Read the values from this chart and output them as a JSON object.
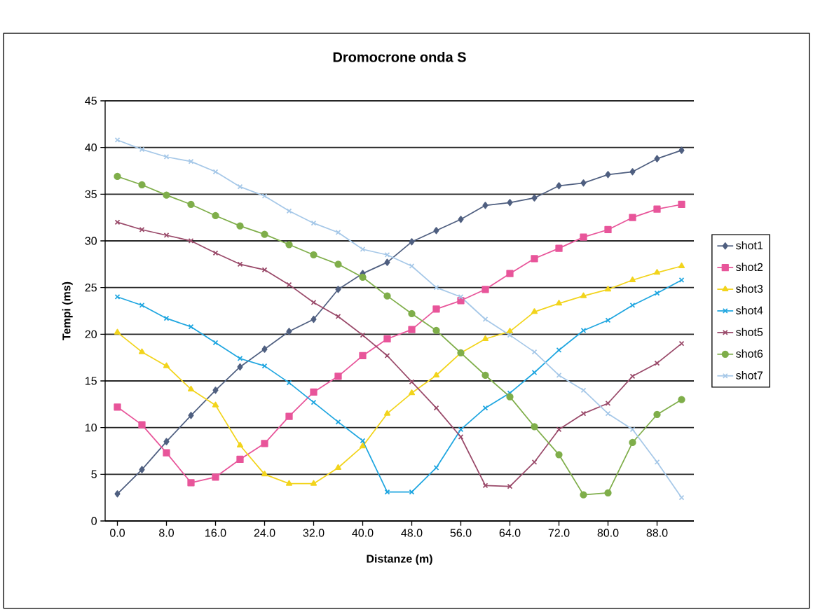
{
  "chart_data": {
    "type": "line",
    "title": "Dromocrone onda S",
    "xlabel": "Distanze (m)",
    "ylabel": "Tempi (ms)",
    "x": [
      0,
      4,
      8,
      12,
      16,
      20,
      24,
      28,
      32,
      36,
      40,
      44,
      48,
      52,
      56,
      60,
      64,
      68,
      72,
      76,
      80,
      84,
      88,
      92
    ],
    "xlim": [
      -2,
      94
    ],
    "xticks": [
      {
        "value": 0,
        "label": "0.0"
      },
      {
        "value": 8,
        "label": "8.0"
      },
      {
        "value": 16,
        "label": "16.0"
      },
      {
        "value": 24,
        "label": "24.0"
      },
      {
        "value": 32,
        "label": "32.0"
      },
      {
        "value": 40,
        "label": "40.0"
      },
      {
        "value": 48,
        "label": "48.0"
      },
      {
        "value": 56,
        "label": "56.0"
      },
      {
        "value": 64,
        "label": "64.0"
      },
      {
        "value": 72,
        "label": "72.0"
      },
      {
        "value": 80,
        "label": "80.0"
      },
      {
        "value": 88,
        "label": "88.0"
      }
    ],
    "ylim": [
      0,
      45
    ],
    "yticks": [
      0,
      5,
      10,
      15,
      20,
      25,
      30,
      35,
      40,
      45
    ],
    "grid": "y",
    "legend": "right",
    "series": [
      {
        "name": "shot1",
        "color": "#4f5f80",
        "marker": "diamond",
        "values": [
          2.9,
          5.5,
          8.5,
          11.3,
          14.0,
          16.5,
          18.4,
          20.3,
          21.6,
          24.8,
          26.5,
          27.7,
          29.9,
          31.1,
          32.3,
          33.8,
          34.1,
          34.6,
          35.9,
          36.2,
          37.1,
          37.4,
          38.8,
          39.7
        ]
      },
      {
        "name": "shot2",
        "color": "#e8559a",
        "marker": "square",
        "values": [
          12.2,
          10.3,
          7.3,
          4.1,
          4.7,
          6.6,
          8.3,
          11.2,
          13.8,
          15.5,
          17.7,
          19.5,
          20.5,
          22.7,
          23.6,
          24.8,
          26.5,
          28.1,
          29.2,
          30.4,
          31.2,
          32.5,
          33.4,
          33.9
        ]
      },
      {
        "name": "shot3",
        "color": "#f2d41c",
        "marker": "triangle",
        "values": [
          20.2,
          18.1,
          16.6,
          14.1,
          12.4,
          8.1,
          5.0,
          4.0,
          4.0,
          5.7,
          8.0,
          11.5,
          13.7,
          15.6,
          18.0,
          19.5,
          20.3,
          22.4,
          23.3,
          24.1,
          24.8,
          25.8,
          26.6,
          27.3
        ]
      },
      {
        "name": "shot4",
        "color": "#1fa6e0",
        "marker": "cross",
        "values": [
          24.0,
          23.1,
          21.7,
          20.8,
          19.1,
          17.4,
          16.6,
          14.8,
          12.7,
          10.6,
          8.6,
          3.1,
          3.1,
          5.7,
          9.8,
          12.1,
          13.7,
          15.9,
          18.3,
          20.4,
          21.5,
          23.1,
          24.4,
          25.8
        ]
      },
      {
        "name": "shot5",
        "color": "#9a4a6a",
        "marker": "cross",
        "values": [
          32.0,
          31.2,
          30.6,
          30.0,
          28.7,
          27.5,
          26.9,
          25.3,
          23.4,
          21.9,
          19.9,
          17.7,
          14.9,
          12.1,
          9.0,
          3.8,
          3.7,
          6.3,
          9.8,
          11.5,
          12.6,
          15.5,
          16.9,
          19.0
        ]
      },
      {
        "name": "shot6",
        "color": "#7fae4a",
        "marker": "circle",
        "values": [
          36.9,
          36.0,
          34.9,
          33.9,
          32.7,
          31.6,
          30.7,
          29.6,
          28.5,
          27.5,
          26.1,
          24.1,
          22.2,
          20.4,
          18.0,
          15.6,
          13.3,
          10.1,
          7.1,
          2.8,
          3.0,
          8.4,
          11.4,
          13.0
        ]
      },
      {
        "name": "shot7",
        "color": "#a6c8e8",
        "marker": "cross",
        "values": [
          40.8,
          39.8,
          39.0,
          38.5,
          37.4,
          35.8,
          34.8,
          33.2,
          31.9,
          30.9,
          29.1,
          28.5,
          27.3,
          25.0,
          24.0,
          21.6,
          19.9,
          18.1,
          15.6,
          14.0,
          11.5,
          9.8,
          6.3,
          2.5
        ]
      }
    ]
  }
}
